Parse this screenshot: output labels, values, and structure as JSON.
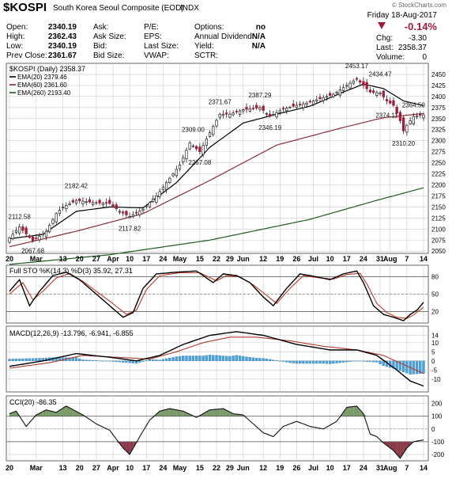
{
  "header": {
    "symbol": "$KOSPI",
    "name": "South Korea Seoul Composite (EOD)",
    "exchange": "INDX",
    "watermark": "© StockCharts.com",
    "date": "Friday  18-Aug-2017",
    "change_pct": "-0.14%",
    "chg_label": "Chg:",
    "chg_value": "-3.30",
    "last_label": "Last:",
    "last_value": "2358.37",
    "volume_label": "Volume:",
    "volume_value": "0",
    "rows": [
      {
        "label": "Open:",
        "value": "2340.19"
      },
      {
        "label": "High:",
        "value": "2362.43"
      },
      {
        "label": "Low:",
        "value": "2340.19"
      },
      {
        "label": "Prev Close:",
        "value": "2361.67"
      }
    ],
    "col2": [
      "Ask:",
      "Ask Size:",
      "Bid:",
      "Bid Size:"
    ],
    "col3": [
      "P/E:",
      "EPS:",
      "Last Size:",
      "VWAP:"
    ],
    "col4": [
      {
        "label": "Options:",
        "value": "no"
      },
      {
        "label": "Annual Dividend:",
        "value": "N/A"
      },
      {
        "label": "Yield:",
        "value": "N/A"
      },
      {
        "label": "SCTR:",
        "value": ""
      }
    ]
  },
  "colors": {
    "up": "#ffffff",
    "down": "#a01c3a",
    "ema20": "#000000",
    "ema60": "#8b2d3a",
    "ema260": "#1f5a1f",
    "stoK": "#000000",
    "stoD": "#c0392b",
    "macd": "#000000",
    "signal": "#b03a2e",
    "hist": "#4aa3df",
    "cciFill": "#7a9a6a",
    "cciNeg": "#8b3a4a",
    "grid": "#cccccc"
  },
  "chart_data": [
    {
      "type": "candlestick",
      "title": "$KOSPI (Daily) 2358.37",
      "legend": [
        {
          "name": "EMA(20) 2379.46",
          "color_key": "ema20"
        },
        {
          "name": "EMA(60) 2361.60",
          "color_key": "ema60"
        },
        {
          "name": "EMA(260) 2193.40",
          "color_key": "ema260"
        }
      ],
      "ylim": [
        2045,
        2475
      ],
      "yticks": [
        2050,
        2075,
        2100,
        2125,
        2150,
        2175,
        2200,
        2225,
        2250,
        2275,
        2300,
        2325,
        2350,
        2375,
        2400,
        2425,
        2450
      ],
      "x_labels": [
        {
          "i": 0,
          "t": "20"
        },
        {
          "i": 8,
          "t": "Mar"
        },
        {
          "i": 16,
          "t": "13"
        },
        {
          "i": 21,
          "t": "20"
        },
        {
          "i": 26,
          "t": "27"
        },
        {
          "i": 31,
          "t": "Apr"
        },
        {
          "i": 36,
          "t": "10"
        },
        {
          "i": 41,
          "t": "17"
        },
        {
          "i": 46,
          "t": "24"
        },
        {
          "i": 51,
          "t": "May"
        },
        {
          "i": 57,
          "t": "15"
        },
        {
          "i": 62,
          "t": "22"
        },
        {
          "i": 66,
          "t": "29"
        },
        {
          "i": 70,
          "t": "Jun"
        },
        {
          "i": 76,
          "t": "12"
        },
        {
          "i": 81,
          "t": "19"
        },
        {
          "i": 86,
          "t": "26"
        },
        {
          "i": 91,
          "t": "Jul"
        },
        {
          "i": 96,
          "t": "10"
        },
        {
          "i": 101,
          "t": "17"
        },
        {
          "i": 106,
          "t": "24"
        },
        {
          "i": 111,
          "t": "31"
        },
        {
          "i": 114,
          "t": "Aug"
        },
        {
          "i": 119,
          "t": "7"
        },
        {
          "i": 124,
          "t": "14"
        }
      ],
      "annotations": [
        {
          "i": 3,
          "v": 2112.58,
          "t": "2112.58",
          "pos": "above"
        },
        {
          "i": 7,
          "v": 2067.68,
          "t": "2067.68",
          "pos": "below"
        },
        {
          "i": 20,
          "v": 2182.42,
          "t": "2182.42",
          "pos": "above"
        },
        {
          "i": 36,
          "v": 2117.82,
          "t": "2117.82",
          "pos": "below"
        },
        {
          "i": 55,
          "v": 2309.0,
          "t": "2309.00",
          "pos": "above"
        },
        {
          "i": 57,
          "v": 2267.08,
          "t": "2267.08",
          "pos": "below"
        },
        {
          "i": 63,
          "v": 2371.67,
          "t": "2371.67",
          "pos": "above"
        },
        {
          "i": 75,
          "v": 2387.29,
          "t": "2387.29",
          "pos": "above"
        },
        {
          "i": 78,
          "v": 2346.19,
          "t": "2346.19",
          "pos": "below"
        },
        {
          "i": 104,
          "v": 2453.17,
          "t": "2453.17",
          "pos": "above"
        },
        {
          "i": 111,
          "v": 2434.47,
          "t": "2434.47",
          "pos": "above"
        },
        {
          "i": 113,
          "v": 2374.11,
          "t": "2374.11",
          "pos": "below"
        },
        {
          "i": 118,
          "v": 2310.2,
          "t": "2310.20",
          "pos": "below"
        },
        {
          "i": 121,
          "v": 2364.5,
          "t": "2364.50",
          "pos": "above"
        }
      ],
      "keypoints": [
        [
          0,
          2080
        ],
        [
          3,
          2105
        ],
        [
          7,
          2073
        ],
        [
          11,
          2095
        ],
        [
          14,
          2135
        ],
        [
          16,
          2150
        ],
        [
          20,
          2165
        ],
        [
          25,
          2160
        ],
        [
          30,
          2158
        ],
        [
          33,
          2140
        ],
        [
          36,
          2128
        ],
        [
          40,
          2145
        ],
        [
          44,
          2175
        ],
        [
          48,
          2215
        ],
        [
          51,
          2245
        ],
        [
          54,
          2295
        ],
        [
          57,
          2275
        ],
        [
          60,
          2318
        ],
        [
          63,
          2360
        ],
        [
          66,
          2360
        ],
        [
          70,
          2370
        ],
        [
          75,
          2375
        ],
        [
          78,
          2355
        ],
        [
          82,
          2372
        ],
        [
          86,
          2380
        ],
        [
          89,
          2385
        ],
        [
          93,
          2395
        ],
        [
          97,
          2405
        ],
        [
          101,
          2425
        ],
        [
          104,
          2440
        ],
        [
          106,
          2425
        ],
        [
          108,
          2410
        ],
        [
          111,
          2408
        ],
        [
          113,
          2390
        ],
        [
          115,
          2380
        ],
        [
          117,
          2345
        ],
        [
          118,
          2322
        ],
        [
          119,
          2335
        ],
        [
          121,
          2355
        ],
        [
          124,
          2358.37
        ]
      ],
      "ema_keys": {
        "ema20": [
          [
            0,
            2078
          ],
          [
            10,
            2088
          ],
          [
            20,
            2140
          ],
          [
            30,
            2150
          ],
          [
            40,
            2148
          ],
          [
            50,
            2205
          ],
          [
            60,
            2285
          ],
          [
            70,
            2340
          ],
          [
            80,
            2360
          ],
          [
            90,
            2378
          ],
          [
            100,
            2410
          ],
          [
            106,
            2428
          ],
          [
            112,
            2418
          ],
          [
            118,
            2390
          ],
          [
            124,
            2379.46
          ]
        ],
        "ema60": [
          [
            0,
            2060
          ],
          [
            20,
            2095
          ],
          [
            40,
            2135
          ],
          [
            60,
            2210
          ],
          [
            80,
            2290
          ],
          [
            100,
            2330
          ],
          [
            112,
            2352
          ],
          [
            124,
            2361.6
          ]
        ],
        "ema260": [
          [
            0,
            2020
          ],
          [
            30,
            2042
          ],
          [
            60,
            2075
          ],
          [
            90,
            2122
          ],
          [
            110,
            2165
          ],
          [
            124,
            2193.4
          ]
        ]
      }
    },
    {
      "type": "line",
      "title": "Full STO %K(14,3) %D(3) 35.92, 27.31",
      "ylim": [
        0,
        100
      ],
      "yticks": [
        20,
        50,
        80
      ],
      "guides": [
        20,
        50,
        80
      ],
      "k_keys": [
        [
          0,
          55
        ],
        [
          3,
          75
        ],
        [
          6,
          30
        ],
        [
          9,
          55
        ],
        [
          13,
          82
        ],
        [
          17,
          88
        ],
        [
          21,
          75
        ],
        [
          25,
          55
        ],
        [
          29,
          35
        ],
        [
          34,
          10
        ],
        [
          37,
          18
        ],
        [
          40,
          60
        ],
        [
          44,
          85
        ],
        [
          50,
          88
        ],
        [
          56,
          90
        ],
        [
          61,
          70
        ],
        [
          64,
          85
        ],
        [
          68,
          82
        ],
        [
          72,
          70
        ],
        [
          76,
          45
        ],
        [
          79,
          30
        ],
        [
          83,
          60
        ],
        [
          87,
          85
        ],
        [
          92,
          80
        ],
        [
          96,
          75
        ],
        [
          100,
          85
        ],
        [
          104,
          90
        ],
        [
          106,
          70
        ],
        [
          109,
          30
        ],
        [
          112,
          15
        ],
        [
          115,
          10
        ],
        [
          118,
          4
        ],
        [
          120,
          15
        ],
        [
          122,
          22
        ],
        [
          124,
          35.92
        ]
      ],
      "d_keys": [
        [
          0,
          50
        ],
        [
          4,
          70
        ],
        [
          7,
          40
        ],
        [
          10,
          55
        ],
        [
          14,
          78
        ],
        [
          18,
          86
        ],
        [
          22,
          72
        ],
        [
          26,
          55
        ],
        [
          30,
          38
        ],
        [
          35,
          15
        ],
        [
          38,
          22
        ],
        [
          41,
          58
        ],
        [
          45,
          82
        ],
        [
          51,
          87
        ],
        [
          57,
          87
        ],
        [
          62,
          73
        ],
        [
          65,
          82
        ],
        [
          69,
          80
        ],
        [
          73,
          66
        ],
        [
          77,
          48
        ],
        [
          80,
          34
        ],
        [
          84,
          60
        ],
        [
          88,
          82
        ],
        [
          93,
          78
        ],
        [
          97,
          76
        ],
        [
          101,
          84
        ],
        [
          105,
          86
        ],
        [
          107,
          68
        ],
        [
          110,
          34
        ],
        [
          113,
          18
        ],
        [
          116,
          10
        ],
        [
          119,
          8
        ],
        [
          121,
          14
        ],
        [
          124,
          27.31
        ]
      ]
    },
    {
      "type": "line",
      "title": "MACD(12,26,9) -13.796, -6.941, -6.855",
      "ylim": [
        -17,
        19
      ],
      "yticks": [
        -10,
        -5,
        0,
        5,
        10,
        14
      ],
      "macd_keys": [
        [
          0,
          -3
        ],
        [
          10,
          0
        ],
        [
          20,
          4
        ],
        [
          30,
          2
        ],
        [
          38,
          0
        ],
        [
          45,
          3
        ],
        [
          52,
          9
        ],
        [
          60,
          14
        ],
        [
          68,
          16
        ],
        [
          76,
          14
        ],
        [
          86,
          9
        ],
        [
          96,
          6
        ],
        [
          104,
          6
        ],
        [
          110,
          3
        ],
        [
          116,
          -5
        ],
        [
          120,
          -11
        ],
        [
          124,
          -13.796
        ]
      ],
      "signal_keys": [
        [
          0,
          -4
        ],
        [
          12,
          -1
        ],
        [
          22,
          3
        ],
        [
          32,
          2
        ],
        [
          42,
          1
        ],
        [
          50,
          5
        ],
        [
          58,
          10
        ],
        [
          66,
          13
        ],
        [
          74,
          13
        ],
        [
          84,
          11
        ],
        [
          94,
          8
        ],
        [
          104,
          6
        ],
        [
          112,
          3
        ],
        [
          118,
          -2
        ],
        [
          124,
          -6.941
        ]
      ]
    },
    {
      "type": "area",
      "title": "CCI(20) -86.35",
      "ylim": [
        -250,
        260
      ],
      "yticks": [
        -200,
        -100,
        0,
        100,
        200
      ],
      "guides": [
        -100,
        0,
        100
      ],
      "keys": [
        [
          0,
          120
        ],
        [
          2,
          140
        ],
        [
          5,
          20
        ],
        [
          8,
          110
        ],
        [
          11,
          150
        ],
        [
          14,
          130
        ],
        [
          17,
          180
        ],
        [
          22,
          110
        ],
        [
          26,
          40
        ],
        [
          30,
          -10
        ],
        [
          34,
          -150
        ],
        [
          36,
          -200
        ],
        [
          39,
          -60
        ],
        [
          42,
          70
        ],
        [
          45,
          140
        ],
        [
          48,
          160
        ],
        [
          52,
          140
        ],
        [
          56,
          90
        ],
        [
          60,
          150
        ],
        [
          64,
          160
        ],
        [
          67,
          120
        ],
        [
          70,
          110
        ],
        [
          73,
          40
        ],
        [
          76,
          -30
        ],
        [
          79,
          -60
        ],
        [
          82,
          20
        ],
        [
          86,
          60
        ],
        [
          90,
          20
        ],
        [
          94,
          0
        ],
        [
          98,
          60
        ],
        [
          101,
          170
        ],
        [
          104,
          180
        ],
        [
          106,
          120
        ],
        [
          108,
          -40
        ],
        [
          110,
          -60
        ],
        [
          112,
          -110
        ],
        [
          115,
          -170
        ],
        [
          117,
          -230
        ],
        [
          119,
          -150
        ],
        [
          121,
          -100
        ],
        [
          123,
          -90
        ],
        [
          124,
          -86.35
        ]
      ]
    }
  ]
}
